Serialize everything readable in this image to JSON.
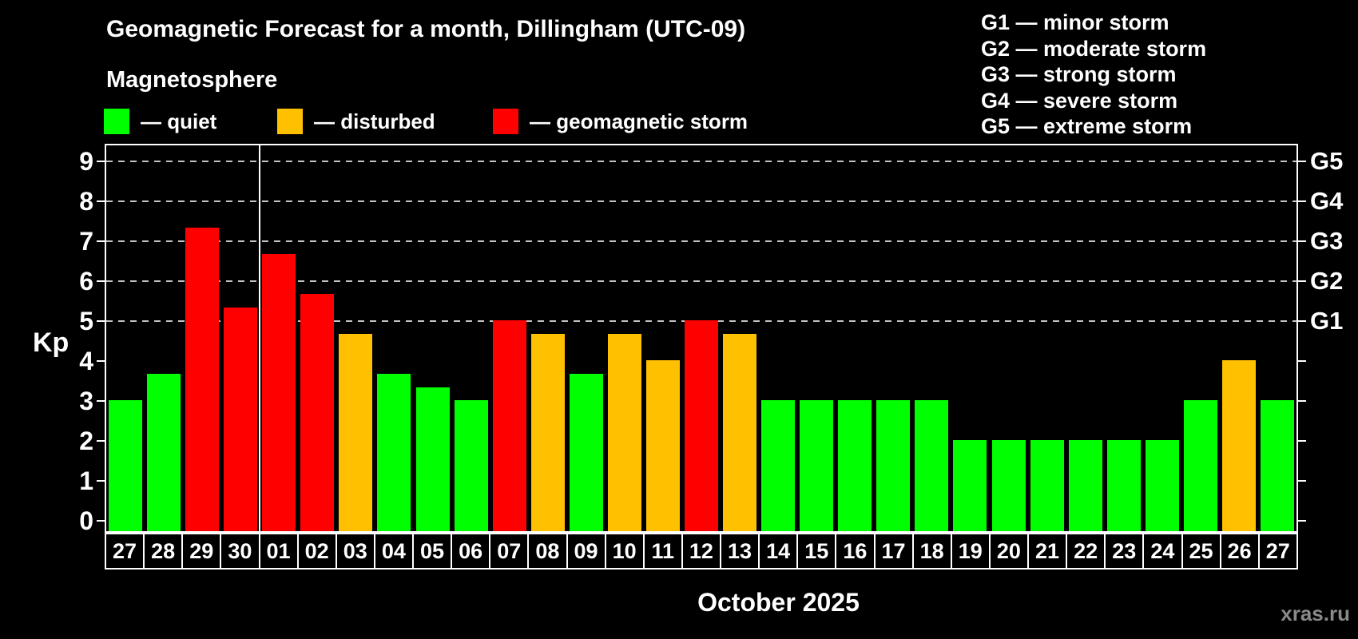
{
  "header": {
    "title": "Geomagnetic Forecast for a month, Dillingham (UTC-09)",
    "subtitle": "Magnetosphere"
  },
  "legend": {
    "items": [
      {
        "key": "quiet",
        "label": "— quiet",
        "color": "#00ff00"
      },
      {
        "key": "disturbed",
        "label": "— disturbed",
        "color": "#ffc000"
      },
      {
        "key": "storm",
        "label": "— geomagnetic storm",
        "color": "#ff0000"
      }
    ]
  },
  "g_legend": {
    "lines": [
      "G1 — minor storm",
      "G2 — moderate storm",
      "G3 — strong storm",
      "G4 — severe storm",
      "G5 — extreme storm"
    ]
  },
  "watermark": "xras.ru",
  "chart_data": {
    "type": "bar",
    "title": "Geomagnetic Forecast for a month, Dillingham (UTC-09)",
    "ylabel": "Kp",
    "xlabel": "October 2025",
    "ylim": [
      0,
      9.4
    ],
    "grid": "dashed horizontal at Kp 5-9",
    "yticks": [
      0,
      1,
      2,
      3,
      4,
      5,
      6,
      7,
      8,
      9
    ],
    "right_axis": [
      {
        "kp": 5,
        "label": "G1"
      },
      {
        "kp": 6,
        "label": "G2"
      },
      {
        "kp": 7,
        "label": "G3"
      },
      {
        "kp": 8,
        "label": "G4"
      },
      {
        "kp": 9,
        "label": "G5"
      }
    ],
    "gridlines_at": [
      5,
      6,
      7,
      8,
      9
    ],
    "month_separator_index": 4,
    "categories": [
      "27",
      "28",
      "29",
      "30",
      "01",
      "02",
      "03",
      "04",
      "05",
      "06",
      "07",
      "08",
      "09",
      "10",
      "11",
      "12",
      "13",
      "14",
      "15",
      "16",
      "17",
      "18",
      "19",
      "20",
      "21",
      "22",
      "23",
      "24",
      "25",
      "26",
      "27"
    ],
    "values": [
      3,
      3.67,
      7.33,
      5.33,
      6.67,
      5.67,
      4.67,
      3.67,
      3.33,
      3,
      5,
      4.67,
      3.67,
      4.67,
      4,
      5,
      4.67,
      3,
      3,
      3,
      3,
      3,
      2,
      2,
      2,
      2,
      2,
      2,
      3,
      4,
      3
    ],
    "statuses": [
      "quiet",
      "quiet",
      "storm",
      "storm",
      "storm",
      "storm",
      "disturbed",
      "quiet",
      "quiet",
      "quiet",
      "storm",
      "disturbed",
      "quiet",
      "disturbed",
      "disturbed",
      "storm",
      "disturbed",
      "quiet",
      "quiet",
      "quiet",
      "quiet",
      "quiet",
      "quiet",
      "quiet",
      "quiet",
      "quiet",
      "quiet",
      "quiet",
      "quiet",
      "disturbed",
      "quiet"
    ],
    "colors": {
      "quiet": "#00ff00",
      "disturbed": "#ffc000",
      "storm": "#ff0000"
    }
  }
}
